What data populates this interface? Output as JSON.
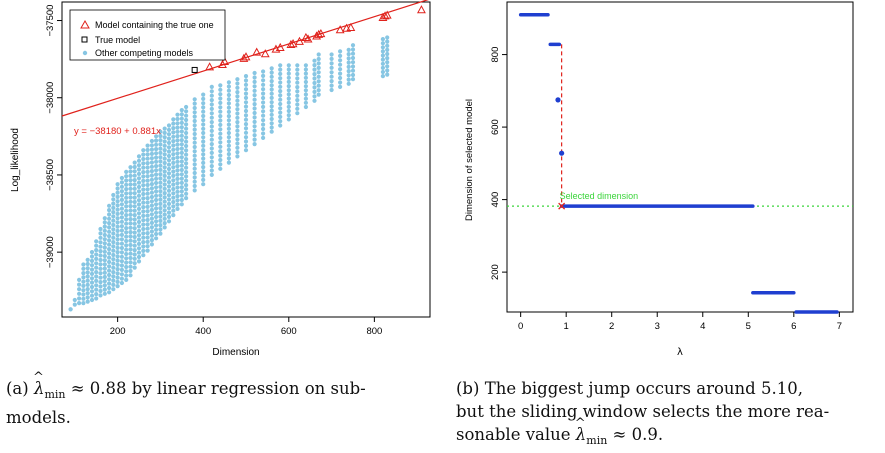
{
  "colors": {
    "red": "#e0221c",
    "blue_line": "#1f3fd0",
    "light_blue": "#87c6e3",
    "green": "#3ad43a",
    "black": "#000000"
  },
  "captions": {
    "a_label": "(a)",
    "a_symbol": "λ",
    "a_sub": "min",
    "a_text1": " ≈ 0.88 by linear regression on sub-",
    "a_text2": "models.",
    "b_label": "(b)",
    "b_text1": "The biggest jump occurs around 5.10,",
    "b_text2": "but the sliding window selects the more rea-",
    "b_text3": "sonable value ",
    "b_symbol": "λ",
    "b_sub": "min",
    "b_text4": " ≈ 0.9."
  },
  "chart_data": [
    {
      "type": "scatter",
      "xlabel": "Dimension",
      "ylabel": "Log_likelihood",
      "xticks": [
        200,
        400,
        600,
        800
      ],
      "yticks": [
        -37500,
        -38000,
        -38500,
        -39000
      ],
      "xlim": [
        70,
        930
      ],
      "ylim": [
        -39420,
        -37380
      ],
      "legend_position": "top-left",
      "legend": [
        "Model containing the true one",
        "True model",
        "Other competing models"
      ],
      "fit_line": {
        "label": "y = −38180 + 0.881x",
        "intercept": -38180,
        "slope": 0.881
      },
      "series": [
        {
          "name": "Model containing the true one",
          "marker": "triangle",
          "x": [
            415,
            445,
            450,
            495,
            500,
            525,
            545,
            570,
            580,
            605,
            610,
            625,
            640,
            645,
            665,
            670,
            675,
            720,
            735,
            745,
            820,
            825,
            830,
            910
          ],
          "y": [
            -37800,
            -37785,
            -37765,
            -37745,
            -37735,
            -37705,
            -37715,
            -37685,
            -37675,
            -37655,
            -37650,
            -37635,
            -37610,
            -37620,
            -37600,
            -37590,
            -37585,
            -37560,
            -37550,
            -37545,
            -37480,
            -37470,
            -37465,
            -37430
          ]
        },
        {
          "name": "True model",
          "marker": "square",
          "x": [
            380
          ],
          "y": [
            -37820
          ]
        },
        {
          "name": "Other competing models",
          "marker": "dot",
          "clusters": [
            [
              90,
              -39370,
              -39370
            ],
            [
              100,
              -39340,
              -39310
            ],
            [
              110,
              -39330,
              -39180
            ],
            [
              120,
              -39330,
              -39080
            ],
            [
              130,
              -39320,
              -39050
            ],
            [
              140,
              -39310,
              -39000
            ],
            [
              150,
              -39300,
              -38930
            ],
            [
              160,
              -39280,
              -38850
            ],
            [
              170,
              -39270,
              -38780
            ],
            [
              180,
              -39260,
              -38700
            ],
            [
              190,
              -39240,
              -38630
            ],
            [
              200,
              -39220,
              -38560
            ],
            [
              210,
              -39200,
              -38520
            ],
            [
              220,
              -39180,
              -38480
            ],
            [
              230,
              -39150,
              -38450
            ],
            [
              240,
              -39100,
              -38420
            ],
            [
              250,
              -39060,
              -38380
            ],
            [
              260,
              -39020,
              -38340
            ],
            [
              270,
              -38990,
              -38310
            ],
            [
              280,
              -38950,
              -38280
            ],
            [
              290,
              -38910,
              -38250
            ],
            [
              300,
              -38880,
              -38220
            ],
            [
              310,
              -38840,
              -38200
            ],
            [
              320,
              -38800,
              -38180
            ],
            [
              330,
              -38760,
              -38140
            ],
            [
              340,
              -38720,
              -38110
            ],
            [
              350,
              -38690,
              -38080
            ],
            [
              360,
              -38650,
              -38060
            ],
            [
              380,
              -38600,
              -38010
            ],
            [
              400,
              -38560,
              -37980
            ],
            [
              420,
              -38500,
              -37930
            ],
            [
              440,
              -38460,
              -37920
            ],
            [
              460,
              -38420,
              -37900
            ],
            [
              480,
              -38380,
              -37880
            ],
            [
              500,
              -38340,
              -37860
            ],
            [
              520,
              -38300,
              -37840
            ],
            [
              540,
              -38260,
              -37830
            ],
            [
              560,
              -38220,
              -37810
            ],
            [
              580,
              -38180,
              -37790
            ],
            [
              600,
              -38140,
              -37790
            ],
            [
              620,
              -38100,
              -37790
            ],
            [
              640,
              -38060,
              -37790
            ],
            [
              660,
              -38020,
              -37760
            ],
            [
              670,
              -37980,
              -37720
            ],
            [
              700,
              -37950,
              -37720
            ],
            [
              720,
              -37930,
              -37700
            ],
            [
              740,
              -37910,
              -37690
            ],
            [
              750,
              -37880,
              -37660
            ],
            [
              820,
              -37860,
              -37620
            ],
            [
              830,
              -37850,
              -37610
            ]
          ]
        }
      ]
    },
    {
      "type": "line",
      "xlabel": "λ",
      "ylabel": "Dimension of selected model",
      "xticks": [
        0,
        1,
        2,
        3,
        4,
        5,
        6,
        7
      ],
      "yticks": [
        200,
        400,
        600,
        800
      ],
      "xlim": [
        -0.3,
        7.3
      ],
      "ylim": [
        90,
        945
      ],
      "annotation": "Selected dimension",
      "selected_dimension": 382,
      "selected_lambda": 0.9,
      "segments": [
        {
          "x0": 0.0,
          "x1": 0.6,
          "y": 910
        },
        {
          "x0": 0.65,
          "x1": 0.85,
          "y": 828
        },
        {
          "x0": 0.82,
          "x1": 0.82,
          "y": 675
        },
        {
          "x0": 0.9,
          "x1": 0.9,
          "y": 528
        },
        {
          "x0": 0.9,
          "x1": 5.1,
          "y": 382
        },
        {
          "x0": 5.1,
          "x1": 6.0,
          "y": 143
        },
        {
          "x0": 6.05,
          "x1": 6.95,
          "y": 90
        }
      ]
    }
  ]
}
